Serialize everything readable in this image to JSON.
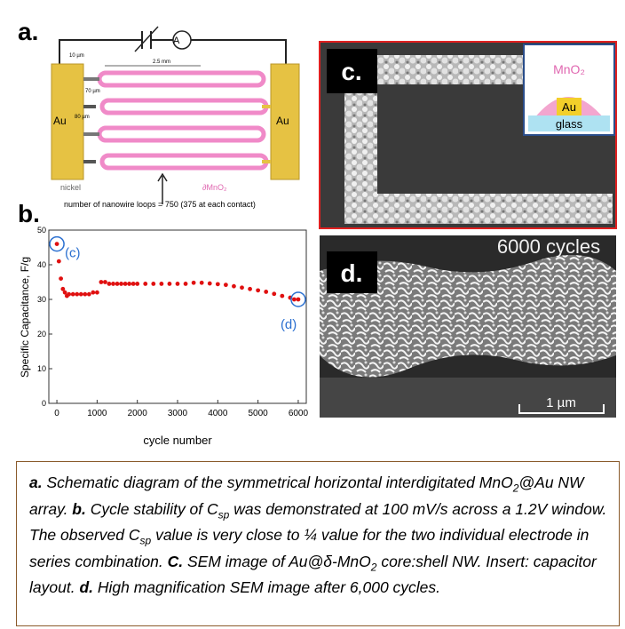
{
  "panel_a": {
    "label": "a.",
    "ammeter": "A",
    "dim_10": "10 µm",
    "dim_length": "2.5 mm",
    "dim_70": "70 µm",
    "dim_80": "80 µm",
    "pad_left": "Au",
    "pad_right": "Au",
    "nickel": "nickel",
    "shell": "∂MnO₂",
    "loops": "number of nanowire loops = 750 (375 at each contact)"
  },
  "panel_b": {
    "label": "b."
  },
  "chart_data": {
    "type": "scatter",
    "xlabel": "cycle number",
    "ylabel": "Specific Capacitance, F/g",
    "color": "#e01010",
    "x": [
      0,
      50,
      100,
      150,
      200,
      250,
      300,
      400,
      500,
      600,
      700,
      800,
      900,
      1000,
      1100,
      1200,
      1300,
      1400,
      1500,
      1600,
      1700,
      1800,
      1900,
      2000,
      2200,
      2400,
      2600,
      2800,
      3000,
      3200,
      3400,
      3600,
      3800,
      4000,
      4200,
      4400,
      4600,
      4800,
      5000,
      5200,
      5400,
      5600,
      5800,
      5900,
      6000
    ],
    "values": [
      46,
      41,
      36,
      33,
      32,
      31,
      31.5,
      31.5,
      31.5,
      31.5,
      31.5,
      31.5,
      32,
      32,
      35,
      35,
      34.5,
      34.5,
      34.5,
      34.5,
      34.5,
      34.5,
      34.5,
      34.5,
      34.5,
      34.5,
      34.5,
      34.5,
      34.5,
      34.5,
      34.8,
      34.8,
      34.6,
      34.4,
      34.2,
      33.8,
      33.4,
      33,
      32.6,
      32.2,
      31.6,
      31,
      30.5,
      30,
      30
    ],
    "xlim": [
      -200,
      6200
    ],
    "xticks": [
      0,
      1000,
      2000,
      3000,
      4000,
      5000,
      6000
    ],
    "ylim": [
      0,
      50
    ],
    "yticks": [
      0,
      10,
      20,
      30,
      40,
      50
    ],
    "annotations": [
      {
        "text": "(c)",
        "index": 0
      },
      {
        "text": "(d)",
        "index": 44
      }
    ]
  },
  "panel_c": {
    "label": "c.",
    "inset_shell": "MnO₂",
    "inset_core": "Au",
    "inset_base": "glass"
  },
  "panel_d": {
    "label": "d.",
    "overlay": "6000 cycles",
    "scale": "1 µm"
  },
  "caption": {
    "parts": [
      "a.",
      " Schematic diagram of the symmetrical horizontal interdigitated MnO",
      "2",
      "@Au NW array. ",
      "b.",
      " Cycle stability of C",
      "sp",
      " was demonstrated at 100 mV/s across a 1.2V window. The observed C",
      "sp",
      " value is very close to ¼ value for the two individual electrode in series combination. ",
      "C.",
      " SEM image of Au@δ-MnO",
      "2",
      " core:shell NW. Insert: capacitor layout. ",
      "d.",
      " High magnification SEM image after 6,000 cycles."
    ]
  }
}
